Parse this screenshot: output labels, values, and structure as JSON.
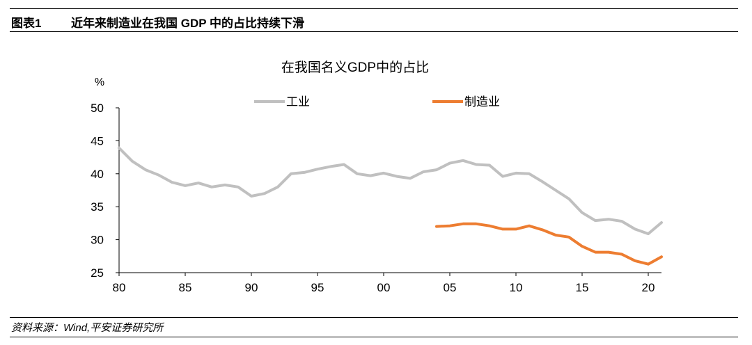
{
  "header": {
    "figure_label": "图表1",
    "figure_title": "近年来制造业在我国 GDP 中的占比持续下滑"
  },
  "footer": {
    "source": "资料来源：Wind,平安证券研究所"
  },
  "chart_data": {
    "type": "line",
    "title": "在我国名义GDP中的占比",
    "ylabel": "%",
    "xlabel": "",
    "ylim": [
      25,
      50
    ],
    "xlim": [
      1980,
      2021
    ],
    "yticks": [
      25,
      30,
      35,
      40,
      45,
      50
    ],
    "xticks": [
      {
        "value": 1980,
        "label": "80"
      },
      {
        "value": 1985,
        "label": "85"
      },
      {
        "value": 1990,
        "label": "90"
      },
      {
        "value": 1995,
        "label": "95"
      },
      {
        "value": 2000,
        "label": "00"
      },
      {
        "value": 2005,
        "label": "05"
      },
      {
        "value": 2010,
        "label": "10"
      },
      {
        "value": 2015,
        "label": "15"
      },
      {
        "value": 2020,
        "label": "20"
      }
    ],
    "legend_position": "top",
    "series": [
      {
        "name": "工业",
        "color": "#c0c0c0",
        "x": [
          1980,
          1981,
          1982,
          1983,
          1984,
          1985,
          1986,
          1987,
          1988,
          1989,
          1990,
          1991,
          1992,
          1993,
          1994,
          1995,
          1996,
          1997,
          1998,
          1999,
          2000,
          2001,
          2002,
          2003,
          2004,
          2005,
          2006,
          2007,
          2008,
          2009,
          2010,
          2011,
          2012,
          2013,
          2014,
          2015,
          2016,
          2017,
          2018,
          2019,
          2020,
          2021
        ],
        "values": [
          43.9,
          41.9,
          40.6,
          39.8,
          38.7,
          38.2,
          38.6,
          38.0,
          38.3,
          38.0,
          36.6,
          37.0,
          38.0,
          40.0,
          40.2,
          40.7,
          41.1,
          41.4,
          40.0,
          39.7,
          40.1,
          39.6,
          39.3,
          40.3,
          40.6,
          41.6,
          42.0,
          41.4,
          41.3,
          39.6,
          40.1,
          40.0,
          38.8,
          37.5,
          36.2,
          34.1,
          32.9,
          33.1,
          32.8,
          31.6,
          30.9,
          32.6
        ]
      },
      {
        "name": "制造业",
        "color": "#ed7d31",
        "x": [
          2004,
          2005,
          2006,
          2007,
          2008,
          2009,
          2010,
          2011,
          2012,
          2013,
          2014,
          2015,
          2016,
          2017,
          2018,
          2019,
          2020,
          2021
        ],
        "values": [
          32.0,
          32.1,
          32.4,
          32.4,
          32.1,
          31.6,
          31.6,
          32.1,
          31.5,
          30.7,
          30.4,
          29.0,
          28.1,
          28.1,
          27.8,
          26.8,
          26.3,
          27.4
        ]
      }
    ]
  }
}
